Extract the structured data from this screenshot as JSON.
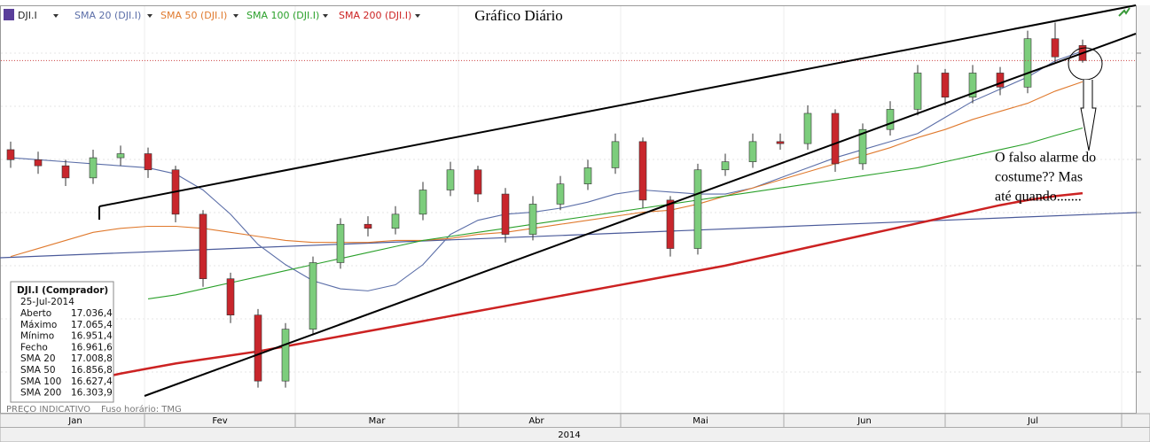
{
  "chart_data": {
    "type": "candlestick",
    "symbol": "DJI.I",
    "title": "Gráfico Diário",
    "annotation": [
      "O falso alarme do",
      "costume?? Mas",
      "até quando......."
    ],
    "months": [
      "Jan",
      "Fev",
      "Mar",
      "Abr",
      "Mai",
      "Jun",
      "Jul"
    ],
    "year": "2014",
    "ylim": [
      15220,
      17240
    ],
    "up_color": "#7ccd7c",
    "down_color": "#c8262c",
    "open": [
      16520,
      16470,
      16440,
      16380,
      16480,
      16500,
      16420,
      16200,
      15880,
      15700,
      15373,
      15630,
      15960,
      16150,
      16130,
      16200,
      16320,
      16420,
      16300,
      16100,
      16250,
      16350,
      16430,
      16560,
      16270,
      16030,
      16420,
      16460,
      16560,
      16550,
      16700,
      16450,
      16620,
      16720,
      16900,
      16780,
      16900,
      16830,
      17070,
      17036.4
    ],
    "high": [
      16560,
      16510,
      16470,
      16520,
      16540,
      16530,
      16440,
      16220,
      15910,
      15730,
      15660,
      15990,
      16180,
      16190,
      16240,
      16360,
      16460,
      16440,
      16330,
      16290,
      16390,
      16470,
      16600,
      16580,
      16290,
      16450,
      16500,
      16600,
      16600,
      16740,
      16720,
      16650,
      16760,
      16940,
      16920,
      16940,
      16930,
      17110,
      17150,
      17065.4
    ],
    "low": [
      16430,
      16400,
      16340,
      16350,
      16440,
      16380,
      16160,
      15840,
      15660,
      15340,
      15340,
      15600,
      15930,
      16090,
      16100,
      16170,
      16290,
      16260,
      16060,
      16070,
      16220,
      16320,
      16400,
      16230,
      15990,
      16000,
      16390,
      16430,
      16520,
      16520,
      16410,
      16420,
      16590,
      16690,
      16740,
      16750,
      16790,
      16800,
      16950,
      16951.4
    ],
    "close": [
      16470,
      16440,
      16380,
      16480,
      16500,
      16420,
      16200,
      15880,
      15700,
      15373,
      15630,
      15960,
      16150,
      16130,
      16200,
      16320,
      16420,
      16300,
      16100,
      16250,
      16350,
      16430,
      16560,
      16270,
      16030,
      16420,
      16460,
      16560,
      16550,
      16700,
      16450,
      16620,
      16720,
      16900,
      16780,
      16900,
      16830,
      17070,
      16980,
      16961.6
    ],
    "series": [
      {
        "name": "SMA 20 (DJI.I)",
        "color": "#5b6ea8",
        "values": [
          16480,
          16470,
          16460,
          16450,
          16440,
          16430,
          16400,
          16320,
          16200,
          16050,
          15950,
          15870,
          15830,
          15820,
          15850,
          15950,
          16100,
          16170,
          16200,
          16210,
          16230,
          16260,
          16300,
          16320,
          16310,
          16300,
          16300,
          16330,
          16380,
          16430,
          16480,
          16520,
          16560,
          16600,
          16680,
          16760,
          16820,
          16880,
          16960,
          17008.8
        ]
      },
      {
        "name": "SMA 50 (DJI.I)",
        "color": "#e07a2e",
        "values": [
          15990,
          16030,
          16070,
          16110,
          16130,
          16140,
          16140,
          16130,
          16110,
          16090,
          16070,
          16060,
          16060,
          16060,
          16070,
          16070,
          16080,
          16100,
          16110,
          16130,
          16150,
          16170,
          16190,
          16210,
          16220,
          16250,
          16290,
          16330,
          16370,
          16410,
          16450,
          16490,
          16530,
          16580,
          16620,
          16670,
          16710,
          16750,
          16810,
          16856.8
        ]
      },
      {
        "name": "SMA 100 (DJI.I)",
        "color": "#2aa02a",
        "values": [
          null,
          null,
          null,
          null,
          null,
          15780,
          15800,
          15830,
          15860,
          15890,
          15920,
          15950,
          15980,
          16010,
          16040,
          16070,
          16090,
          16110,
          16130,
          16150,
          16170,
          16190,
          16210,
          16230,
          16250,
          16270,
          16290,
          16310,
          16330,
          16350,
          16370,
          16390,
          16410,
          16430,
          16460,
          16490,
          16520,
          16550,
          16590,
          16627.4
        ]
      },
      {
        "name": "SMA 200 (DJI.I)",
        "color": "#cc2222",
        "values": [
          15290,
          15320,
          15350,
          15380,
          15410,
          15435,
          15460,
          15480,
          15500,
          15520,
          15545,
          15570,
          15595,
          15620,
          15645,
          15670,
          15695,
          15720,
          15745,
          15770,
          15795,
          15820,
          15845,
          15870,
          15895,
          15920,
          15945,
          15975,
          16005,
          16035,
          16065,
          16095,
          16125,
          16155,
          16185,
          16215,
          16245,
          16270,
          16290,
          16303.9
        ]
      }
    ]
  },
  "info_box": {
    "title": "DJI.I (Comprador)",
    "date": "25-Jul-2014",
    "rows": [
      {
        "label": "Aberto",
        "value": "17.036,4"
      },
      {
        "label": "Máximo",
        "value": "17.065,4"
      },
      {
        "label": "Mínimo",
        "value": "16.951,4"
      },
      {
        "label": "Fecho",
        "value": "16.961,6"
      },
      {
        "label": "SMA 20",
        "value": "17.008,8"
      },
      {
        "label": "SMA 50",
        "value": "16.856,8"
      },
      {
        "label": "SMA 100",
        "value": "16.627,4"
      },
      {
        "label": "SMA 200",
        "value": "16.303,9"
      }
    ]
  },
  "footer": {
    "price_note": "PREÇO INDICATIVO",
    "timezone": "Fuso horário: TMG"
  }
}
